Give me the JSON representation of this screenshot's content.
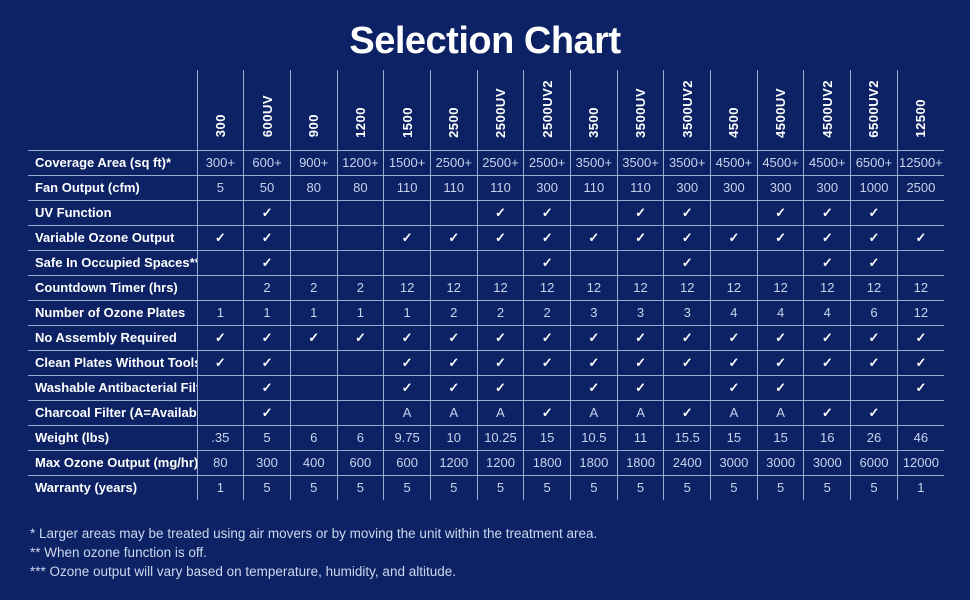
{
  "page": {
    "background_color": "#0c2264",
    "grid_color": "#9aabd0",
    "value_text_color": "#c7d3ec",
    "label_text_color": "#ffffff"
  },
  "chart_data": {
    "type": "table",
    "title": "Selection Chart",
    "check_symbol": "✓",
    "columns": [
      "300",
      "600UV",
      "900",
      "1200",
      "1500",
      "2500",
      "2500UV",
      "2500UV2",
      "3500",
      "3500UV",
      "3500UV2",
      "4500",
      "4500UV",
      "4500UV2",
      "6500UV2",
      "12500"
    ],
    "rows": [
      {
        "label": "Coverage Area (sq ft)*",
        "values": [
          "300+",
          "600+",
          "900+",
          "1200+",
          "1500+",
          "2500+",
          "2500+",
          "2500+",
          "3500+",
          "3500+",
          "3500+",
          "4500+",
          "4500+",
          "4500+",
          "6500+",
          "12500+"
        ]
      },
      {
        "label": "Fan Output (cfm)",
        "values": [
          "5",
          "50",
          "80",
          "80",
          "110",
          "110",
          "110",
          "300",
          "110",
          "110",
          "300",
          "300",
          "300",
          "300",
          "1000",
          "2500"
        ]
      },
      {
        "label": "UV Function",
        "values": [
          "",
          "✓",
          "",
          "",
          "",
          "",
          "✓",
          "✓",
          "",
          "✓",
          "✓",
          "",
          "✓",
          "✓",
          "✓",
          ""
        ]
      },
      {
        "label": "Variable Ozone Output",
        "values": [
          "✓",
          "✓",
          "",
          "",
          "✓",
          "✓",
          "✓",
          "✓",
          "✓",
          "✓",
          "✓",
          "✓",
          "✓",
          "✓",
          "✓",
          "✓"
        ]
      },
      {
        "label": "Safe In Occupied Spaces**",
        "values": [
          "",
          "✓",
          "",
          "",
          "",
          "",
          "",
          "✓",
          "",
          "",
          "✓",
          "",
          "",
          "✓",
          "✓",
          ""
        ]
      },
      {
        "label": "Countdown Timer (hrs)",
        "values": [
          "",
          "2",
          "2",
          "2",
          "12",
          "12",
          "12",
          "12",
          "12",
          "12",
          "12",
          "12",
          "12",
          "12",
          "12",
          "12"
        ]
      },
      {
        "label": "Number of Ozone Plates",
        "values": [
          "1",
          "1",
          "1",
          "1",
          "1",
          "2",
          "2",
          "2",
          "3",
          "3",
          "3",
          "4",
          "4",
          "4",
          "6",
          "12"
        ]
      },
      {
        "label": "No Assembly Required",
        "values": [
          "✓",
          "✓",
          "✓",
          "✓",
          "✓",
          "✓",
          "✓",
          "✓",
          "✓",
          "✓",
          "✓",
          "✓",
          "✓",
          "✓",
          "✓",
          "✓"
        ]
      },
      {
        "label": "Clean Plates Without Tools",
        "values": [
          "✓",
          "✓",
          "",
          "",
          "✓",
          "✓",
          "✓",
          "✓",
          "✓",
          "✓",
          "✓",
          "✓",
          "✓",
          "✓",
          "✓",
          "✓"
        ]
      },
      {
        "label": "Washable Antibacterial Filter",
        "values": [
          "",
          "✓",
          "",
          "",
          "✓",
          "✓",
          "✓",
          "",
          "✓",
          "✓",
          "",
          "✓",
          "✓",
          "",
          "",
          "✓"
        ]
      },
      {
        "label": "Charcoal Filter (A=Available)",
        "values": [
          "",
          "✓",
          "",
          "",
          "A",
          "A",
          "A",
          "✓",
          "A",
          "A",
          "✓",
          "A",
          "A",
          "✓",
          "✓",
          ""
        ]
      },
      {
        "label": "Weight (lbs)",
        "values": [
          ".35",
          "5",
          "6",
          "6",
          "9.75",
          "10",
          "10.25",
          "15",
          "10.5",
          "11",
          "15.5",
          "15",
          "15",
          "16",
          "26",
          "46"
        ]
      },
      {
        "label": "Max Ozone Output (mg/hr)***",
        "values": [
          "80",
          "300",
          "400",
          "600",
          "600",
          "1200",
          "1200",
          "1800",
          "1800",
          "1800",
          "2400",
          "3000",
          "3000",
          "3000",
          "6000",
          "12000"
        ]
      },
      {
        "label": "Warranty (years)",
        "values": [
          "1",
          "5",
          "5",
          "5",
          "5",
          "5",
          "5",
          "5",
          "5",
          "5",
          "5",
          "5",
          "5",
          "5",
          "5",
          "1"
        ]
      }
    ],
    "footnotes": [
      "* Larger areas may be treated using air movers or by moving the unit within the treatment area.",
      "** When ozone function is off.",
      "*** Ozone output will vary based on temperature, humidity, and altitude."
    ]
  }
}
